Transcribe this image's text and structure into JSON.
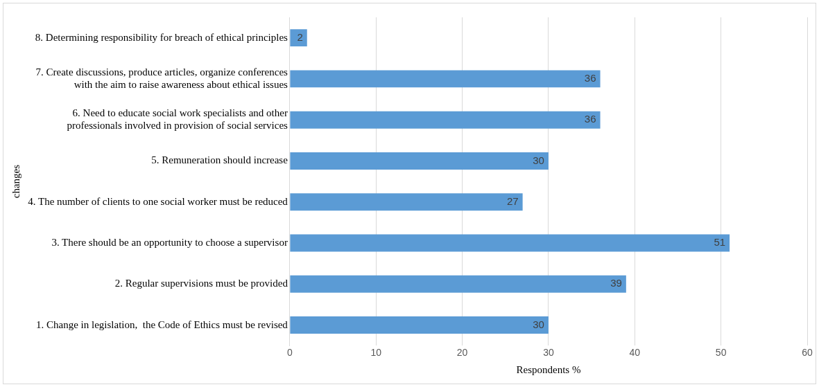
{
  "chart_data": {
    "type": "bar",
    "orientation": "horizontal",
    "xlabel": "Respondents %",
    "ylabel": "changes",
    "categories": [
      "8. Determining responsibility for breach of ethical principles",
      "7. Create discussions, produce articles, organize conferences with the aim to raise awareness about ethical issues",
      "6. Need to educate social work specialists and other professionals involved in provision of social services",
      "5. Remuneration should increase",
      "4. The number of clients to one social worker must be reduced",
      "3. There should be an opportunity to choose a supervisor",
      "2. Regular supervisions must be provided",
      "1. Change in legislation,  the Code of Ethics must be revised"
    ],
    "values": [
      2,
      36,
      36,
      30,
      27,
      51,
      39,
      30
    ],
    "color": "#5b9bd5",
    "xlim": [
      0,
      60
    ],
    "xticks": [
      0,
      10,
      20,
      30,
      40,
      50,
      60
    ],
    "grid": "x",
    "data_labels": true
  }
}
